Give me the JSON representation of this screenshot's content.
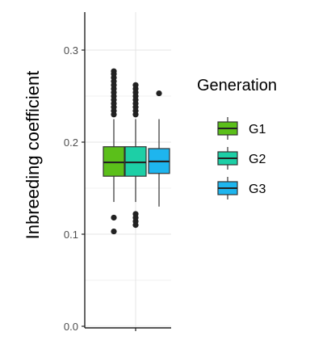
{
  "chart_data": {
    "type": "boxplot",
    "title": "",
    "xlabel": "",
    "ylabel": "Inbreeding coefficient",
    "ylim": [
      0,
      0.33
    ],
    "yticks": [
      0.0,
      0.1,
      0.2,
      0.3
    ],
    "ytick_labels": [
      "0.0",
      "0.1",
      "0.2",
      "0.3"
    ],
    "grid": true,
    "legend": {
      "title": "Generation",
      "position": "right",
      "entries": [
        "G1",
        "G2",
        "G3"
      ]
    },
    "series": [
      {
        "name": "G1",
        "color": "#5BBF1A",
        "stats": {
          "whisker_low": 0.135,
          "q1": 0.163,
          "median": 0.178,
          "q3": 0.195,
          "whisker_high": 0.225
        },
        "outliers_high": [
          0.23,
          0.234,
          0.238,
          0.242,
          0.246,
          0.25,
          0.254,
          0.258,
          0.262,
          0.266,
          0.27,
          0.274,
          0.277
        ],
        "outliers_low": [
          0.103,
          0.118
        ]
      },
      {
        "name": "G2",
        "color": "#1DCFA6",
        "stats": {
          "whisker_low": 0.135,
          "q1": 0.163,
          "median": 0.178,
          "q3": 0.195,
          "whisker_high": 0.225
        },
        "outliers_high": [
          0.23,
          0.234,
          0.238,
          0.242,
          0.246,
          0.25,
          0.254,
          0.258,
          0.262
        ],
        "outliers_low": [
          0.11,
          0.114,
          0.118,
          0.122
        ]
      },
      {
        "name": "G3",
        "color": "#1EB5EE",
        "stats": {
          "whisker_low": 0.13,
          "q1": 0.166,
          "median": 0.179,
          "q3": 0.193,
          "whisker_high": 0.225
        },
        "outliers_high": [
          0.253
        ],
        "outliers_low": []
      }
    ]
  }
}
